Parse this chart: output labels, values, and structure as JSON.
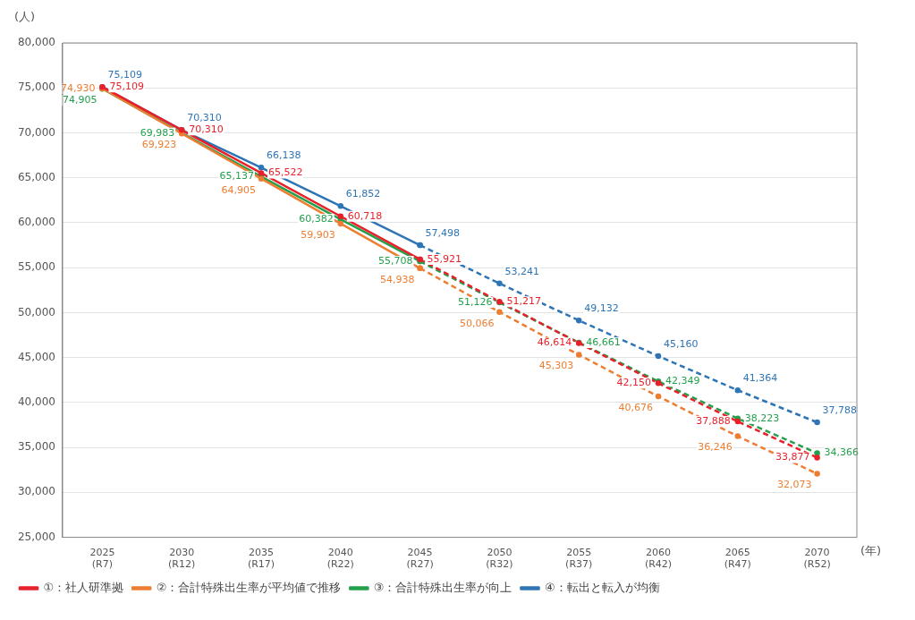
{
  "chart_data": {
    "type": "line",
    "ylabel": "(人)",
    "xlabel": "(年)",
    "categories": [
      "2025\n(R7)",
      "2030\n(R12)",
      "2035\n(R17)",
      "2040\n(R22)",
      "2045\n(R27)",
      "2050\n(R32)",
      "2055\n(R37)",
      "2060\n(R42)",
      "2065\n(R47)",
      "2070\n(R52)"
    ],
    "series": [
      {
        "name": "①：社人研準拠",
        "color": "#e8202a",
        "line_style": "solid",
        "values": [
          75109,
          70310,
          65522,
          60718,
          55921,
          null,
          null,
          null,
          null,
          null
        ],
        "value_labels": [
          "75,109",
          "70,310",
          "65,522",
          "60,718",
          "55,921",
          null,
          null,
          null,
          null,
          null
        ]
      },
      {
        "name": "②：合計特殊出生率が平均値で推移",
        "color": "#ed7d31",
        "line_style": "solid",
        "values": [
          74930,
          69923,
          64905,
          59903,
          54938,
          null,
          null,
          null,
          null,
          null
        ],
        "value_labels": [
          "74,930",
          "69,923",
          "64,905",
          "59,903",
          "54,938",
          null,
          null,
          null,
          null,
          null
        ]
      },
      {
        "name": "③：合計特殊出生率が向上",
        "color": "#23a04c",
        "line_style": "solid",
        "values": [
          74905,
          69983,
          65137,
          60382,
          55708,
          null,
          null,
          null,
          null,
          null
        ],
        "value_labels": [
          "74,905",
          "69,983",
          "65,137",
          "60,382",
          "55,708",
          null,
          null,
          null,
          null,
          null
        ]
      },
      {
        "name": "④：転出と転入が均衡",
        "color": "#2e75b6",
        "line_style": "solid",
        "values": [
          75109,
          70310,
          66138,
          61852,
          57498,
          null,
          null,
          null,
          null,
          null
        ],
        "value_labels": [
          "75,109",
          "70,310",
          "66,138",
          "61,852",
          "57,498",
          null,
          null,
          null,
          null,
          null
        ]
      },
      {
        "color": "#e8202a",
        "line_style": "dashed",
        "values": [
          null,
          null,
          null,
          null,
          55921,
          51217,
          46614,
          42150,
          37888,
          33877
        ],
        "value_labels": [
          null,
          null,
          null,
          null,
          null,
          "51,217",
          "46,614",
          "42,150",
          "37,888",
          "33,877"
        ]
      },
      {
        "color": "#ed7d31",
        "line_style": "dashed",
        "values": [
          null,
          null,
          null,
          null,
          54938,
          50066,
          45303,
          40676,
          36246,
          32073
        ],
        "value_labels": [
          null,
          null,
          null,
          null,
          null,
          "50,066",
          "45,303",
          "40,676",
          "36,246",
          "32,073"
        ]
      },
      {
        "color": "#23a04c",
        "line_style": "dashed",
        "values": [
          null,
          null,
          null,
          null,
          55708,
          51126,
          46661,
          42349,
          38223,
          34366
        ],
        "value_labels": [
          null,
          null,
          null,
          null,
          null,
          "51,126",
          "46,661",
          "42,349",
          "38,223",
          "34,366"
        ]
      },
      {
        "color": "#2e75b6",
        "line_style": "dashed",
        "values": [
          null,
          null,
          null,
          null,
          57498,
          53241,
          49132,
          45160,
          41364,
          37788
        ],
        "value_labels": [
          null,
          null,
          null,
          null,
          null,
          "53,241",
          "49,132",
          "45,160",
          "41,364",
          "37,788"
        ]
      }
    ],
    "ylim": [
      25000,
      80000
    ],
    "yticks": [
      {
        "value": 25000,
        "label": "25,000"
      },
      {
        "value": 30000,
        "label": "30,000"
      },
      {
        "value": 35000,
        "label": "35,000"
      },
      {
        "value": 40000,
        "label": "40,000"
      },
      {
        "value": 45000,
        "label": "45,000"
      },
      {
        "value": 50000,
        "label": "50,000"
      },
      {
        "value": 55000,
        "label": "55,000"
      },
      {
        "value": 60000,
        "label": "60,000"
      },
      {
        "value": 65000,
        "label": "65,000"
      },
      {
        "value": 70000,
        "label": "70,000"
      },
      {
        "value": 75000,
        "label": "75,000"
      },
      {
        "value": 80000,
        "label": "80,000"
      }
    ],
    "grid": "y",
    "legend": "bottom left",
    "marker": "circle"
  }
}
